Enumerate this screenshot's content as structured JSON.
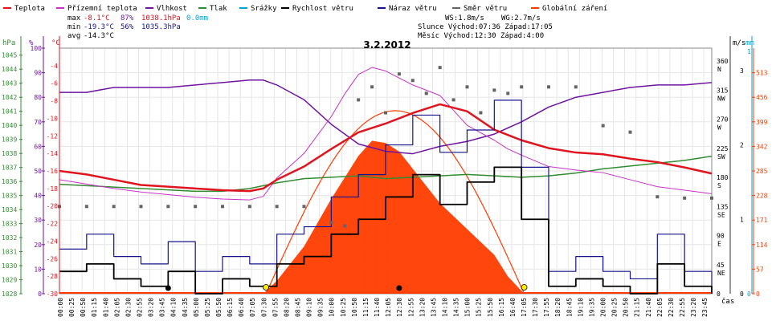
{
  "title": "3.2.2012",
  "legend": [
    {
      "label": "Teplota",
      "color": "#e0141e"
    },
    {
      "label": "Přízemní teplota",
      "color": "#c832c8"
    },
    {
      "label": "Vlhkost",
      "color": "#6e14a0"
    },
    {
      "label": "Tlak",
      "color": "#328c32"
    },
    {
      "label": "Srážky",
      "color": "#0aa0d2"
    },
    {
      "label": "Rychlost větru",
      "color": "#000000"
    },
    {
      "label": "Náraz větru",
      "color": "#14148c"
    },
    {
      "label": "Směr větru",
      "color": "#646464"
    },
    {
      "label": "Globální záření",
      "color": "#ff3c00"
    }
  ],
  "stats": {
    "max": {
      "label": "max",
      "temp": "-8.1°C",
      "hum": "87%",
      "press": "1038.1hPa",
      "rain": "0.0mm"
    },
    "min": {
      "label": "min",
      "temp": "-19.3°C",
      "hum": "56%",
      "press": "1035.3hPa"
    },
    "avg": {
      "label": "avg",
      "temp": "-14.3°C"
    }
  },
  "info": {
    "ws": "WS:1.8m/s",
    "wg": "WG:2.7m/s",
    "sun": "Slunce Východ:07:36  Západ:17:05",
    "moon": "Měsíc  Východ:12:30  Západ:4:00"
  },
  "axis_units": {
    "hpa": "hPa",
    "pct": "%",
    "degc": "°C",
    "ms": "m/s",
    "mm": "mm",
    "time": "čas"
  },
  "axes": {
    "hpa_ticks": [
      "1045",
      "1044",
      "1043",
      "1042",
      "1041",
      "1040",
      "1039",
      "1038",
      "1037",
      "1036",
      "1035",
      "1034",
      "1033",
      "1032",
      "1031",
      "1030",
      "1029",
      "1028"
    ],
    "pct_ticks": [
      "100",
      "90",
      "80",
      "70",
      "60",
      "50",
      "40",
      "30",
      "20",
      "10",
      "0"
    ],
    "temp_ticks": [
      "-4",
      "-6",
      "-8",
      "-10",
      "-12",
      "-14",
      "-16",
      "-18",
      "-20",
      "-22",
      "-24",
      "-26",
      "-28",
      "-30"
    ],
    "dir_ticks": [
      {
        "deg": "360",
        "dir": "N"
      },
      {
        "deg": "315",
        "dir": "NW"
      },
      {
        "deg": "270",
        "dir": "W"
      },
      {
        "deg": "225",
        "dir": "SW"
      },
      {
        "deg": "180",
        "dir": "S"
      },
      {
        "deg": "135",
        "dir": "SE"
      },
      {
        "deg": "90",
        "dir": "E"
      },
      {
        "deg": "45",
        "dir": "NE"
      },
      {
        "deg": "0",
        "dir": ""
      }
    ],
    "ms_ticks": [
      "3",
      "2",
      "1",
      "0"
    ],
    "mm_ticks": [
      "1",
      "0"
    ],
    "rad_ticks": [
      "513",
      "456",
      "399",
      "342",
      "285",
      "228",
      "171",
      "114",
      "57",
      "0"
    ]
  },
  "chart_data": {
    "type": "line",
    "x_labels": [
      "00:00",
      "00:25",
      "00:50",
      "01:15",
      "01:40",
      "02:05",
      "02:30",
      "02:55",
      "03:20",
      "03:45",
      "04:10",
      "04:35",
      "05:00",
      "05:25",
      "05:50",
      "06:15",
      "06:40",
      "07:05",
      "07:30",
      "07:55",
      "08:20",
      "08:45",
      "09:10",
      "09:35",
      "10:00",
      "10:25",
      "10:50",
      "11:15",
      "11:40",
      "12:05",
      "12:30",
      "12:55",
      "13:20",
      "13:45",
      "14:10",
      "14:35",
      "15:00",
      "15:25",
      "15:50",
      "16:15",
      "16:40",
      "17:05",
      "17:30",
      "17:55",
      "18:20",
      "18:45",
      "19:10",
      "19:35",
      "20:00",
      "20:25",
      "20:50",
      "21:15",
      "21:40",
      "22:05",
      "22:30",
      "22:55",
      "23:20",
      "23:45"
    ],
    "series": [
      {
        "name": "Teplota",
        "unit": "°C",
        "x": [
          0,
          1,
          2,
          3,
          4,
          5,
          6,
          7,
          7.5,
          8,
          9,
          10,
          11,
          12,
          13,
          14,
          15,
          16,
          17,
          18,
          19,
          20,
          21,
          22,
          23,
          24
        ],
        "values": [
          -16.0,
          -16.4,
          -17.0,
          -17.6,
          -17.8,
          -18.0,
          -18.2,
          -18.3,
          -18.0,
          -17.0,
          -15.5,
          -13.5,
          -11.6,
          -10.6,
          -9.4,
          -8.4,
          -9.2,
          -11.3,
          -12.5,
          -13.4,
          -13.9,
          -14.1,
          -14.6,
          -15.0,
          -15.6,
          -16.3
        ]
      },
      {
        "name": "Přízemní teplota",
        "unit": "°C",
        "x": [
          0,
          1,
          2,
          3,
          4,
          5,
          6,
          7,
          7.5,
          8,
          9,
          10,
          10.5,
          11,
          11.5,
          12,
          13,
          14,
          15,
          16,
          16.5,
          17,
          18,
          19,
          20,
          21,
          22,
          23,
          24
        ],
        "values": [
          -17.0,
          -17.5,
          -18.0,
          -18.4,
          -18.7,
          -19.0,
          -19.2,
          -19.3,
          -18.9,
          -16.8,
          -14.0,
          -9.8,
          -7.2,
          -5.0,
          -4.2,
          -4.6,
          -6.2,
          -7.4,
          -10.8,
          -12.5,
          -13.5,
          -14.2,
          -15.5,
          -15.9,
          -16.2,
          -17.0,
          -17.8,
          -18.2,
          -18.6
        ]
      },
      {
        "name": "Vlhkost",
        "unit": "%",
        "x": [
          0,
          1,
          2,
          3,
          4,
          5,
          6,
          7,
          7.5,
          8,
          9,
          10,
          11,
          12,
          13,
          14,
          15,
          16,
          17,
          18,
          19,
          20,
          21,
          22,
          23,
          24
        ],
        "values": [
          82,
          82,
          84,
          84,
          84,
          85,
          86,
          87,
          87,
          85,
          79,
          69,
          61,
          58,
          57,
          60,
          62,
          65,
          70,
          76,
          80,
          82,
          84,
          85,
          85,
          86
        ]
      },
      {
        "name": "Tlak",
        "unit": "hPa",
        "x": [
          0,
          1,
          2,
          3,
          4,
          5,
          6,
          7,
          8,
          9,
          10,
          11,
          12,
          13,
          14,
          15,
          16,
          17,
          18,
          19,
          20,
          21,
          22,
          23,
          24
        ],
        "values": [
          1035.8,
          1035.7,
          1035.6,
          1035.5,
          1035.4,
          1035.3,
          1035.3,
          1035.5,
          1035.9,
          1036.2,
          1036.3,
          1036.4,
          1036.2,
          1036.3,
          1036.4,
          1036.5,
          1036.4,
          1036.3,
          1036.4,
          1036.6,
          1036.9,
          1037.1,
          1037.3,
          1037.5,
          1037.8
        ]
      },
      {
        "name": "Rychlost větru",
        "unit": "m/s",
        "x": [
          0,
          1,
          2,
          3,
          4,
          5,
          6,
          7,
          8,
          9,
          10,
          11,
          12,
          13,
          14,
          15,
          16,
          17,
          18,
          19,
          20,
          21,
          22,
          23,
          24
        ],
        "values": [
          0.3,
          0.4,
          0.2,
          0.1,
          0.3,
          0.0,
          0.2,
          0.1,
          0.4,
          0.5,
          0.8,
          1.0,
          1.3,
          1.6,
          1.2,
          1.5,
          1.7,
          1.0,
          0.1,
          0.2,
          0.1,
          0.0,
          0.4,
          0.1,
          0.0
        ]
      },
      {
        "name": "Náraz větru",
        "unit": "m/s",
        "x": [
          0,
          1,
          2,
          3,
          4,
          5,
          6,
          7,
          8,
          9,
          10,
          11,
          12,
          13,
          14,
          15,
          16,
          17,
          18,
          19,
          20,
          21,
          22,
          23,
          24
        ],
        "values": [
          0.6,
          0.8,
          0.5,
          0.4,
          0.7,
          0.3,
          0.5,
          0.4,
          0.8,
          0.9,
          1.3,
          1.6,
          2.0,
          2.4,
          1.9,
          2.2,
          2.6,
          1.7,
          0.3,
          0.5,
          0.3,
          0.2,
          0.8,
          0.3,
          0.1
        ]
      },
      {
        "name": "Směr větru",
        "unit": "°",
        "x": [
          0,
          1,
          2,
          3,
          4,
          5,
          6,
          7,
          8,
          9,
          10,
          10.5,
          11,
          11.5,
          12,
          12.5,
          13,
          13.5,
          14,
          14.5,
          15,
          15.5,
          16,
          16.5,
          17,
          18,
          19,
          20,
          21,
          22,
          23,
          24
        ],
        "values": [
          135,
          135,
          135,
          135,
          135,
          135,
          135,
          135,
          135,
          135,
          110,
          105,
          300,
          320,
          280,
          340,
          330,
          310,
          350,
          300,
          320,
          280,
          315,
          310,
          320,
          320,
          320,
          260,
          250,
          150,
          148,
          148
        ]
      },
      {
        "name": "Globální záření",
        "unit": "W/m2",
        "x": [
          7.5,
          8,
          9,
          10,
          11,
          11.5,
          12,
          12.5,
          13,
          14,
          15,
          16,
          16.5,
          17.1
        ],
        "values": [
          0,
          30,
          110,
          220,
          320,
          355,
          350,
          330,
          290,
          210,
          150,
          90,
          40,
          0
        ]
      }
    ],
    "sun_clear_sky": {
      "start": 7.6,
      "end": 17.1,
      "peak": 425
    },
    "ranges": {
      "temp": [
        -30,
        -2
      ],
      "hum": [
        0,
        100
      ],
      "press": [
        1028,
        1045.5
      ],
      "wind": [
        0,
        3.3
      ],
      "dir": [
        0,
        380
      ],
      "rad": [
        0,
        570
      ]
    }
  }
}
